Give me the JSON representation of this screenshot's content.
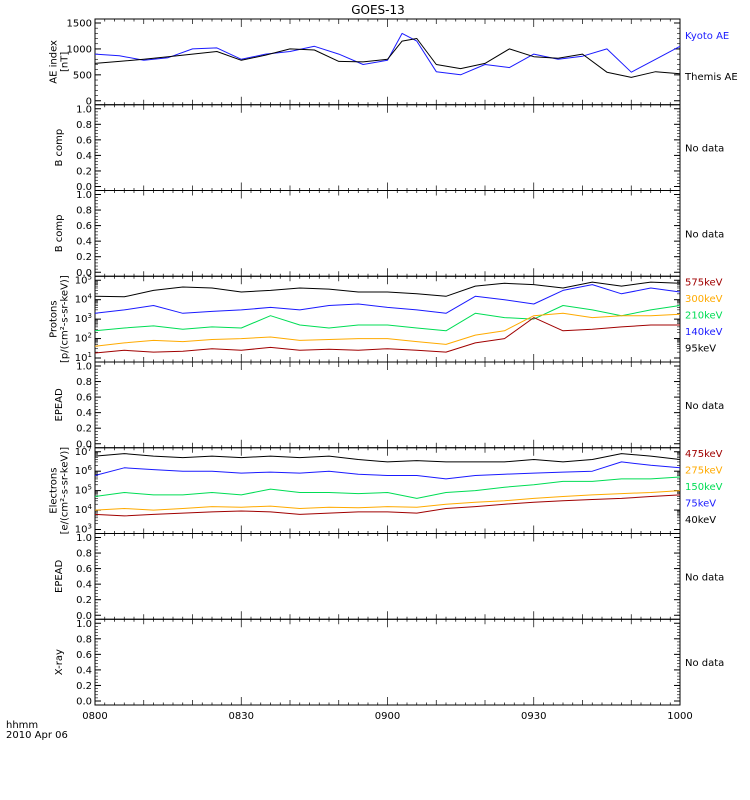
{
  "title": "GOES-13",
  "x_axis": {
    "start_label": "hhmm",
    "date_label": "2010 Apr 06",
    "ticks": [
      "0800",
      "0830",
      "0900",
      "0930",
      "1000"
    ]
  },
  "colors": {
    "black": "#000000",
    "blue": "#1a1aff",
    "green": "#00dd55",
    "orange": "#ffaa00",
    "darkred": "#a00000"
  },
  "panels": [
    {
      "ylabel": [
        "AE index",
        "[nT]"
      ],
      "right_labels": [
        {
          "text": "Kyoto AE",
          "color": "blue"
        },
        {
          "text": "Themis AE",
          "color": "black"
        }
      ]
    },
    {
      "ylabel": [
        "B comp"
      ],
      "right_labels": [
        {
          "text": "No data",
          "color": "black"
        }
      ]
    },
    {
      "ylabel": [
        "B comp"
      ],
      "right_labels": [
        {
          "text": "No data",
          "color": "black"
        }
      ]
    },
    {
      "ylabel": [
        "Protons",
        "[p/(cm²-s-sr-keV)]"
      ],
      "right_labels": [
        {
          "text": "575keV",
          "color": "darkred"
        },
        {
          "text": "300keV",
          "color": "orange"
        },
        {
          "text": "210keV",
          "color": "green"
        },
        {
          "text": "140keV",
          "color": "blue"
        },
        {
          "text": "95keV",
          "color": "black"
        }
      ]
    },
    {
      "ylabel": [
        "EPEAD"
      ],
      "right_labels": [
        {
          "text": "No data",
          "color": "black"
        }
      ]
    },
    {
      "ylabel": [
        "Electrons",
        "[e/(cm²-s-sr-keV)]"
      ],
      "right_labels": [
        {
          "text": "475keV",
          "color": "darkred"
        },
        {
          "text": "275keV",
          "color": "orange"
        },
        {
          "text": "150keV",
          "color": "green"
        },
        {
          "text": "75keV",
          "color": "blue"
        },
        {
          "text": "40keV",
          "color": "black"
        }
      ]
    },
    {
      "ylabel": [
        "EPEAD"
      ],
      "right_labels": [
        {
          "text": "No data",
          "color": "black"
        }
      ]
    },
    {
      "ylabel": [
        "X-ray"
      ],
      "right_labels": [
        {
          "text": "No data",
          "color": "black"
        }
      ]
    }
  ],
  "chart_data": [
    {
      "type": "line",
      "ylabel": "AE index [nT]",
      "ylim": [
        0,
        1500
      ],
      "yticks": [
        "0",
        "500",
        "1000",
        "1500"
      ],
      "x_range": [
        "0800",
        "1000"
      ],
      "series": [
        {
          "name": "Kyoto AE",
          "color": "blue",
          "x": [
            "0800",
            "0805",
            "0810",
            "0815",
            "0820",
            "0825",
            "0830",
            "0835",
            "0840",
            "0845",
            "0850",
            "0855",
            "0900",
            "0903",
            "0906",
            "0910",
            "0915",
            "0920",
            "0925",
            "0930",
            "0935",
            "0940",
            "0945",
            "0950",
            "0955",
            "1000"
          ],
          "y": [
            900,
            870,
            780,
            830,
            1000,
            1020,
            800,
            900,
            950,
            1050,
            900,
            700,
            780,
            1300,
            1150,
            560,
            500,
            700,
            640,
            900,
            800,
            860,
            1000,
            550,
            800,
            1050
          ]
        },
        {
          "name": "Themis AE",
          "color": "black",
          "x": [
            "0800",
            "0805",
            "0810",
            "0815",
            "0820",
            "0825",
            "0830",
            "0835",
            "0840",
            "0845",
            "0850",
            "0855",
            "0900",
            "0903",
            "0906",
            "0910",
            "0915",
            "0920",
            "0925",
            "0930",
            "0935",
            "0940",
            "0945",
            "0950",
            "0955",
            "1000"
          ],
          "y": [
            720,
            760,
            800,
            850,
            900,
            950,
            780,
            880,
            1000,
            980,
            760,
            750,
            800,
            1150,
            1200,
            700,
            620,
            720,
            1000,
            850,
            820,
            900,
            550,
            450,
            560,
            520
          ]
        }
      ]
    },
    {
      "type": "line",
      "ylabel": "B comp",
      "ylim": [
        0.0,
        1.0
      ],
      "yticks": [
        "0.0",
        "0.2",
        "0.4",
        "0.6",
        "0.8",
        "1.0"
      ],
      "series": []
    },
    {
      "type": "line",
      "ylabel": "B comp",
      "ylim": [
        0.0,
        1.0
      ],
      "yticks": [
        "0.0",
        "0.2",
        "0.4",
        "0.6",
        "0.8",
        "1.0"
      ],
      "series": []
    },
    {
      "type": "line",
      "ylabel": "Protons [p/(cm²-s-sr-keV)]",
      "log_scale": true,
      "ylim": [
        10,
        100000
      ],
      "ytick_exponents": [
        1,
        2,
        3,
        4,
        5
      ],
      "series": [
        {
          "name": "95keV",
          "color": "black",
          "x": [
            "0800",
            "0806",
            "0812",
            "0818",
            "0824",
            "0830",
            "0836",
            "0842",
            "0848",
            "0854",
            "0900",
            "0906",
            "0912",
            "0918",
            "0924",
            "0930",
            "0936",
            "0942",
            "0948",
            "0954",
            "1000"
          ],
          "y": [
            15000,
            14000,
            30000,
            45000,
            40000,
            25000,
            30000,
            40000,
            35000,
            25000,
            25000,
            20000,
            15000,
            50000,
            70000,
            60000,
            40000,
            80000,
            50000,
            80000,
            70000
          ]
        },
        {
          "name": "140keV",
          "color": "blue",
          "x": [
            "0800",
            "0806",
            "0812",
            "0818",
            "0824",
            "0830",
            "0836",
            "0842",
            "0848",
            "0854",
            "0900",
            "0906",
            "0912",
            "0918",
            "0924",
            "0930",
            "0936",
            "0942",
            "0948",
            "0954",
            "1000"
          ],
          "y": [
            2000,
            3000,
            5000,
            2000,
            2500,
            3000,
            4000,
            3000,
            5000,
            6000,
            4000,
            3000,
            2000,
            15000,
            10000,
            6000,
            30000,
            60000,
            20000,
            40000,
            25000
          ]
        },
        {
          "name": "210keV",
          "color": "green",
          "x": [
            "0800",
            "0806",
            "0812",
            "0818",
            "0824",
            "0830",
            "0836",
            "0842",
            "0848",
            "0854",
            "0900",
            "0906",
            "0912",
            "0918",
            "0924",
            "0930",
            "0936",
            "0942",
            "0948",
            "0954",
            "1000"
          ],
          "y": [
            250,
            350,
            450,
            300,
            400,
            350,
            1500,
            500,
            350,
            500,
            500,
            350,
            250,
            2000,
            1200,
            1000,
            5000,
            3000,
            1500,
            3000,
            5000
          ]
        },
        {
          "name": "300keV",
          "color": "orange",
          "x": [
            "0800",
            "0806",
            "0812",
            "0818",
            "0824",
            "0830",
            "0836",
            "0842",
            "0848",
            "0854",
            "0900",
            "0906",
            "0912",
            "0918",
            "0924",
            "0930",
            "0936",
            "0942",
            "0948",
            "0954",
            "1000"
          ],
          "y": [
            40,
            60,
            80,
            70,
            90,
            100,
            120,
            80,
            90,
            100,
            100,
            70,
            50,
            150,
            250,
            1500,
            2000,
            1200,
            1500,
            1500,
            1800
          ]
        },
        {
          "name": "575keV",
          "color": "darkred",
          "x": [
            "0800",
            "0806",
            "0812",
            "0818",
            "0824",
            "0830",
            "0836",
            "0842",
            "0848",
            "0854",
            "0900",
            "0906",
            "0912",
            "0918",
            "0924",
            "0930",
            "0936",
            "0942",
            "0948",
            "0954",
            "1000"
          ],
          "y": [
            18,
            25,
            20,
            22,
            30,
            25,
            35,
            25,
            28,
            25,
            30,
            25,
            20,
            60,
            100,
            1200,
            250,
            300,
            400,
            500,
            500
          ]
        }
      ]
    },
    {
      "type": "line",
      "ylabel": "EPEAD",
      "ylim": [
        0.0,
        1.0
      ],
      "yticks": [
        "0.0",
        "0.2",
        "0.4",
        "0.6",
        "0.8",
        "1.0"
      ],
      "series": []
    },
    {
      "type": "line",
      "ylabel": "Electrons [e/(cm²-s-sr-keV)]",
      "log_scale": true,
      "ylim": [
        1000,
        10000000
      ],
      "ytick_exponents": [
        3,
        4,
        5,
        6,
        7
      ],
      "series": [
        {
          "name": "40keV",
          "color": "black",
          "x": [
            "0800",
            "0806",
            "0812",
            "0818",
            "0824",
            "0830",
            "0836",
            "0842",
            "0848",
            "0854",
            "0900",
            "0906",
            "0912",
            "0918",
            "0924",
            "0930",
            "0936",
            "0942",
            "0948",
            "0954",
            "1000"
          ],
          "y": [
            6000000,
            8000000,
            6000000,
            5000000,
            6000000,
            5000000,
            6000000,
            5000000,
            6000000,
            4000000,
            3000000,
            3500000,
            3000000,
            3000000,
            3000000,
            4000000,
            3000000,
            4000000,
            8000000,
            6000000,
            4000000
          ]
        },
        {
          "name": "75keV",
          "color": "blue",
          "x": [
            "0800",
            "0806",
            "0812",
            "0818",
            "0824",
            "0830",
            "0836",
            "0842",
            "0848",
            "0854",
            "0900",
            "0906",
            "0912",
            "0918",
            "0924",
            "0930",
            "0936",
            "0942",
            "0948",
            "0954",
            "1000"
          ],
          "y": [
            600000,
            1500000,
            1200000,
            1000000,
            1000000,
            800000,
            900000,
            800000,
            1000000,
            700000,
            600000,
            600000,
            400000,
            600000,
            700000,
            800000,
            900000,
            1000000,
            3000000,
            2000000,
            1500000
          ]
        },
        {
          "name": "150keV",
          "color": "green",
          "x": [
            "0800",
            "0806",
            "0812",
            "0818",
            "0824",
            "0830",
            "0836",
            "0842",
            "0848",
            "0854",
            "0900",
            "0906",
            "0912",
            "0918",
            "0924",
            "0930",
            "0936",
            "0942",
            "0948",
            "0954",
            "1000"
          ],
          "y": [
            50000,
            80000,
            60000,
            60000,
            80000,
            60000,
            120000,
            80000,
            80000,
            70000,
            80000,
            40000,
            80000,
            100000,
            150000,
            200000,
            300000,
            300000,
            400000,
            400000,
            500000
          ]
        },
        {
          "name": "275keV",
          "color": "orange",
          "x": [
            "0800",
            "0806",
            "0812",
            "0818",
            "0824",
            "0830",
            "0836",
            "0842",
            "0848",
            "0854",
            "0900",
            "0906",
            "0912",
            "0918",
            "0924",
            "0930",
            "0936",
            "0942",
            "0948",
            "0954",
            "1000"
          ],
          "y": [
            10000,
            12000,
            10000,
            12000,
            15000,
            14000,
            16000,
            12000,
            14000,
            13000,
            15000,
            14000,
            20000,
            25000,
            30000,
            40000,
            50000,
            60000,
            70000,
            80000,
            100000
          ]
        },
        {
          "name": "475keV",
          "color": "darkred",
          "x": [
            "0800",
            "0806",
            "0812",
            "0818",
            "0824",
            "0830",
            "0836",
            "0842",
            "0848",
            "0854",
            "0900",
            "0906",
            "0912",
            "0918",
            "0924",
            "0930",
            "0936",
            "0942",
            "0948",
            "0954",
            "1000"
          ],
          "y": [
            6000,
            5000,
            6000,
            7000,
            8000,
            9000,
            8000,
            6000,
            7000,
            8000,
            8000,
            7000,
            12000,
            15000,
            20000,
            25000,
            30000,
            35000,
            40000,
            50000,
            60000
          ]
        }
      ]
    },
    {
      "type": "line",
      "ylabel": "EPEAD",
      "ylim": [
        0.0,
        1.0
      ],
      "yticks": [
        "0.0",
        "0.2",
        "0.4",
        "0.6",
        "0.8",
        "1.0"
      ],
      "series": []
    },
    {
      "type": "line",
      "ylabel": "X-ray",
      "ylim": [
        0.0,
        1.0
      ],
      "yticks": [
        "0.0",
        "0.2",
        "0.4",
        "0.6",
        "0.8",
        "1.0"
      ],
      "series": []
    }
  ]
}
